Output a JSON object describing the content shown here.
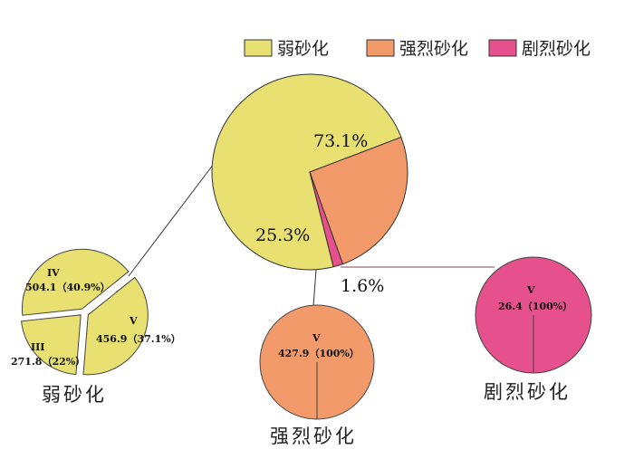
{
  "chart_data": [
    {
      "type": "pie",
      "categories": [
        "弱砂化",
        "强烈砂化",
        "剧烈砂化"
      ],
      "values": [
        73.1,
        25.3,
        1.6
      ],
      "labels": [
        "73.1%",
        "25.3%",
        "1.6%"
      ],
      "colors": [
        "#e8e070",
        "#f29a69",
        "#e6508c"
      ],
      "legend": {
        "position": "top-right",
        "entries": [
          "弱砂化",
          "强烈砂化",
          "剧烈砂化"
        ]
      }
    },
    {
      "type": "pie",
      "title": "弱砂化",
      "categories": [
        "IV",
        "V",
        "III"
      ],
      "values": [
        504.1,
        456.9,
        271.8
      ],
      "percents": [
        "（40.9%）",
        "（37.1%）",
        "（22%）"
      ],
      "value_labels": [
        "504.1",
        "456.9",
        "271.8"
      ],
      "color": "#e8e070"
    },
    {
      "type": "pie",
      "title": "强烈砂化",
      "categories": [
        "V"
      ],
      "values": [
        427.9
      ],
      "percents": [
        "（100%）"
      ],
      "value_labels": [
        "427.9"
      ],
      "color": "#f29a69"
    },
    {
      "type": "pie",
      "title": "剧烈砂化",
      "categories": [
        "V"
      ],
      "values": [
        26.4
      ],
      "percents": [
        "（100%）"
      ],
      "value_labels": [
        "26.4"
      ],
      "color": "#e6508c"
    }
  ]
}
